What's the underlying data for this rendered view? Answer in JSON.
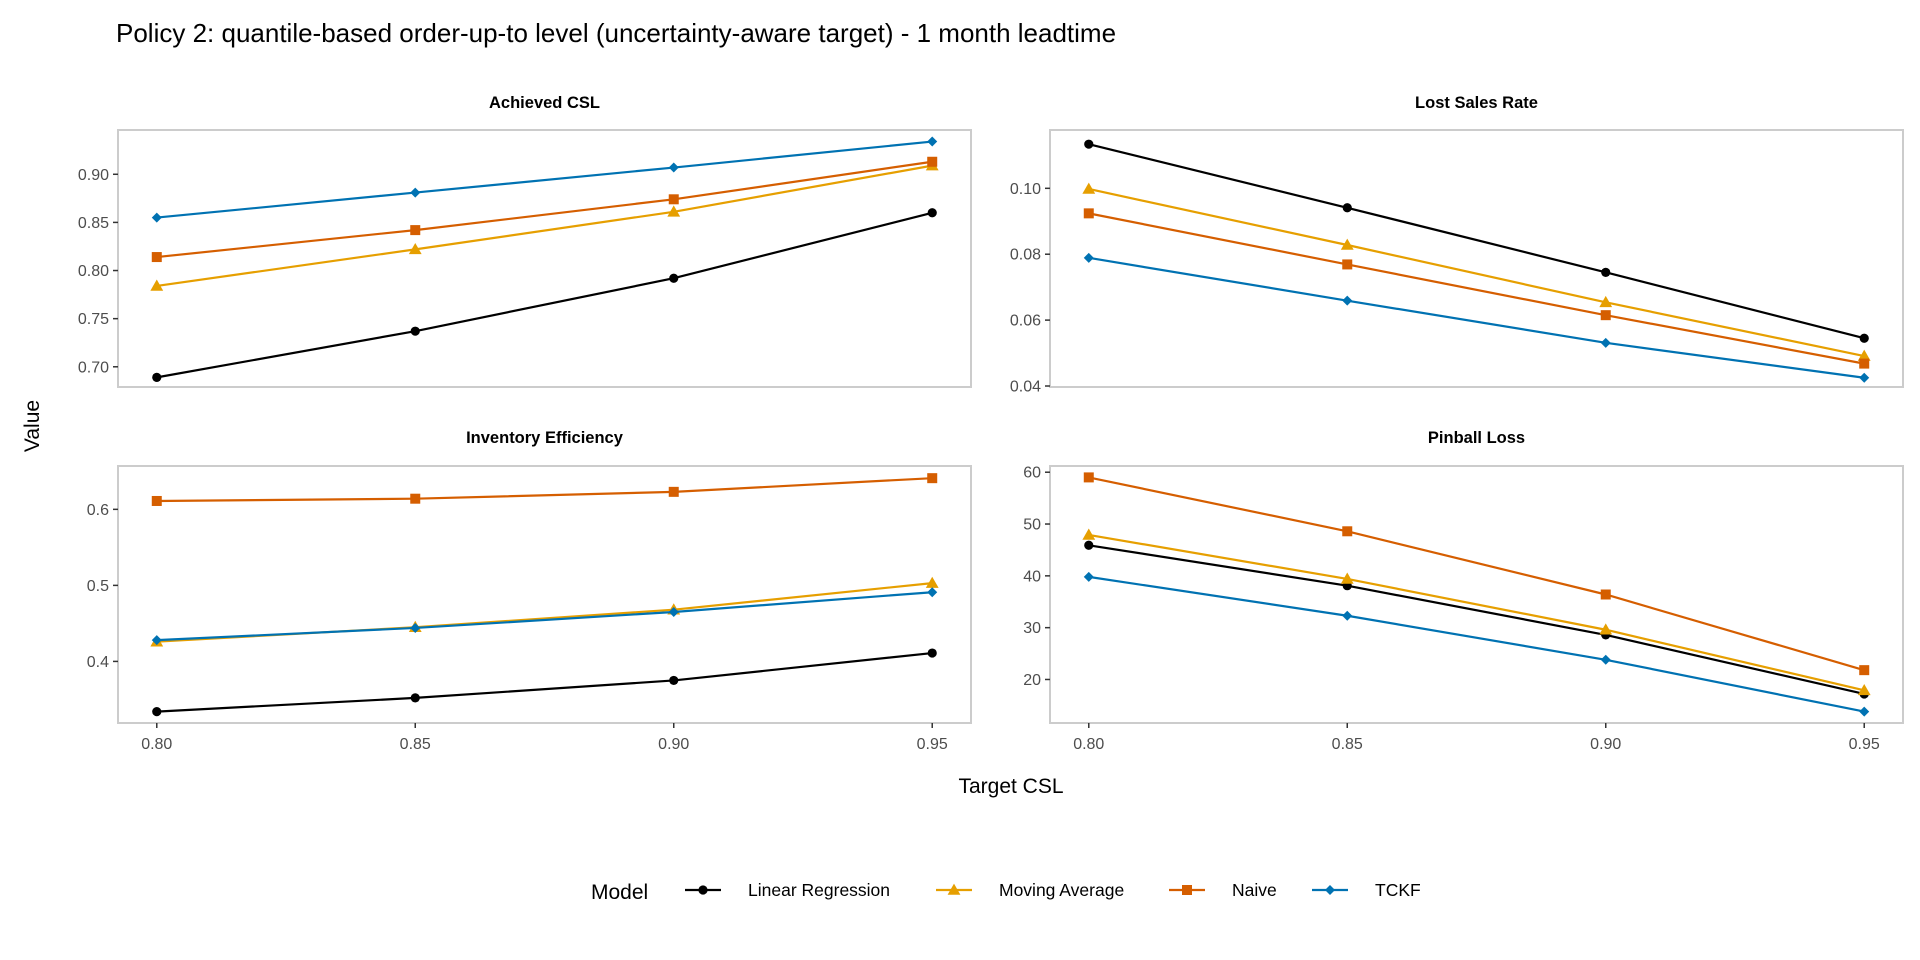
{
  "chart_data": {
    "type": "line",
    "title": "Policy 2: quantile-based order-up-to level (uncertainty-aware target) - 1 month leadtime",
    "xlabel": "Target CSL",
    "ylabel": "Value",
    "x": [
      0.8,
      0.85,
      0.9,
      0.95
    ],
    "x_tick_labels": [
      "0.80",
      "0.85",
      "0.90",
      "0.95"
    ],
    "legend": {
      "title": "Model",
      "position": "bottom",
      "entries": [
        {
          "name": "Linear Regression",
          "color": "#000000",
          "marker": "circle"
        },
        {
          "name": "Moving Average",
          "color": "#E69F00",
          "marker": "triangle"
        },
        {
          "name": "Naive",
          "color": "#D55E00",
          "marker": "square"
        },
        {
          "name": "TCKF",
          "color": "#0072B2",
          "marker": "diamond"
        }
      ]
    },
    "panels": [
      {
        "title": "Achieved CSL",
        "ylim": [
          0.679,
          0.946
        ],
        "y_ticks": [
          0.7,
          0.75,
          0.8,
          0.85,
          0.9
        ],
        "y_tick_labels": [
          "0.70",
          "0.75",
          "0.80",
          "0.85",
          "0.90"
        ],
        "series": [
          {
            "name": "Linear Regression",
            "values": [
              0.689,
              0.737,
              0.792,
              0.86
            ]
          },
          {
            "name": "Moving Average",
            "values": [
              0.784,
              0.822,
              0.861,
              0.909
            ]
          },
          {
            "name": "Naive",
            "values": [
              0.814,
              0.842,
              0.874,
              0.913
            ]
          },
          {
            "name": "TCKF",
            "values": [
              0.855,
              0.881,
              0.907,
              0.934
            ]
          }
        ]
      },
      {
        "title": "Lost Sales Rate",
        "ylim": [
          0.0397,
          0.1177
        ],
        "y_ticks": [
          0.04,
          0.06,
          0.08,
          0.1
        ],
        "y_tick_labels": [
          "0.04",
          "0.06",
          "0.08",
          "0.10"
        ],
        "series": [
          {
            "name": "Linear Regression",
            "values": [
              0.1134,
              0.0941,
              0.0745,
              0.0545
            ]
          },
          {
            "name": "Moving Average",
            "values": [
              0.0998,
              0.0828,
              0.0654,
              0.0491
            ]
          },
          {
            "name": "Naive",
            "values": [
              0.0924,
              0.0769,
              0.0615,
              0.0468
            ]
          },
          {
            "name": "TCKF",
            "values": [
              0.0789,
              0.0659,
              0.0531,
              0.0425
            ]
          }
        ]
      },
      {
        "title": "Inventory Efficiency",
        "ylim": [
          0.319,
          0.657
        ],
        "y_ticks": [
          0.4,
          0.5,
          0.6
        ],
        "y_tick_labels": [
          "0.4",
          "0.5",
          "0.6"
        ],
        "series": [
          {
            "name": "Linear Regression",
            "values": [
              0.334,
              0.352,
              0.375,
              0.411
            ]
          },
          {
            "name": "Moving Average",
            "values": [
              0.426,
              0.445,
              0.468,
              0.503
            ]
          },
          {
            "name": "Naive",
            "values": [
              0.611,
              0.614,
              0.623,
              0.641
            ]
          },
          {
            "name": "TCKF",
            "values": [
              0.428,
              0.444,
              0.465,
              0.491
            ]
          }
        ]
      },
      {
        "title": "Pinball Loss",
        "ylim": [
          11.6,
          61.2
        ],
        "y_ticks": [
          20,
          30,
          40,
          50,
          60
        ],
        "y_tick_labels": [
          "20",
          "30",
          "40",
          "50",
          "60"
        ],
        "series": [
          {
            "name": "Linear Regression",
            "values": [
              45.9,
              38.1,
              28.6,
              17.2
            ]
          },
          {
            "name": "Moving Average",
            "values": [
              47.9,
              39.4,
              29.6,
              17.9
            ]
          },
          {
            "name": "Naive",
            "values": [
              59.0,
              48.6,
              36.4,
              21.8
            ]
          },
          {
            "name": "TCKF",
            "values": [
              39.8,
              32.3,
              23.8,
              13.8
            ]
          }
        ]
      }
    ]
  }
}
